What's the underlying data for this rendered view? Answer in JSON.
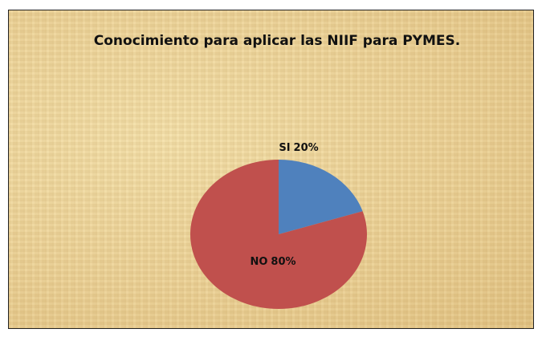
{
  "chart_data": {
    "type": "pie",
    "title": "Conocimiento para aplicar las NIIF para PYMES.",
    "categories": [
      "SI",
      "NO"
    ],
    "values": [
      20,
      80
    ],
    "value_labels": [
      "20%",
      "80%"
    ],
    "colors": [
      "#4f81bd",
      "#c0504d"
    ]
  }
}
